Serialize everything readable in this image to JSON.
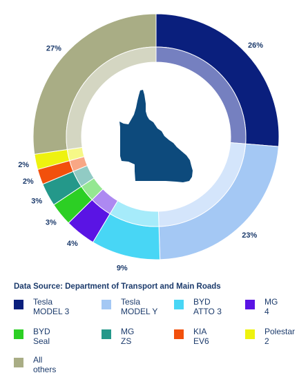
{
  "chart_data": {
    "type": "pie",
    "style": "donut",
    "source": "Data Source:  Department of Transport and Main Roads",
    "series": [
      {
        "name": "Tesla\nMODEL 3",
        "value": 26,
        "label": "26%",
        "color": "#0a1f7d",
        "inner_color": "#7580c0"
      },
      {
        "name": "Tesla\nMODEL Y",
        "value": 23,
        "label": "23%",
        "color": "#a4c8f4",
        "inner_color": "#d4e5fb"
      },
      {
        "name": "BYD\nATTO 3",
        "value": 9,
        "label": "9%",
        "color": "#48d6f5",
        "inner_color": "#a6ebfa"
      },
      {
        "name": "MG\n4",
        "value": 4,
        "label": "4%",
        "color": "#5a14e4",
        "inner_color": "#ad89f1"
      },
      {
        "name": "BYD\nSeal",
        "value": 3,
        "label": "3%",
        "color": "#2ccf24",
        "inner_color": "#95e791"
      },
      {
        "name": "MG\nZS",
        "value": 3,
        "label": "3%",
        "color": "#24988a",
        "inner_color": "#91cbc4"
      },
      {
        "name": "KIA\nEV6",
        "value": 2,
        "label": "2%",
        "color": "#f2500c",
        "inner_color": "#f8a785"
      },
      {
        "name": "Polestar\n2",
        "value": 2,
        "label": "2%",
        "color": "#eef20f",
        "inner_color": "#f6f887"
      },
      {
        "name": "All\nothers",
        "value": 27,
        "label": "27%",
        "color": "#a9ad85",
        "inner_color": "#d4d6c2"
      }
    ],
    "center_graphic": "queensland-map",
    "center_graphic_color": "#0d4a7c",
    "legend_position": "bottom"
  }
}
